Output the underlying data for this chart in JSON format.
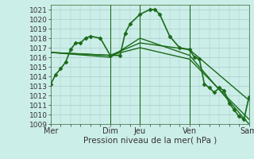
{
  "background_color": "#cceee8",
  "grid_color": "#aacccc",
  "line_color": "#1a6b1a",
  "xlabel": "Pression niveau de la mer( hPa )",
  "ylim": [
    1009,
    1021.5
  ],
  "yticks": [
    1009,
    1010,
    1011,
    1012,
    1013,
    1014,
    1015,
    1016,
    1017,
    1018,
    1019,
    1020,
    1021
  ],
  "xtick_labels": [
    "Mer",
    "Dim",
    "Jeu",
    "Ven",
    "Sam"
  ],
  "xtick_positions": [
    0,
    6,
    9,
    14,
    20
  ],
  "day_lines": [
    6,
    9,
    14,
    20
  ],
  "xlim": [
    0,
    20
  ],
  "series": [
    {
      "x": [
        0,
        0.5,
        1,
        1.5,
        2,
        2.5,
        3,
        3.5,
        4,
        5,
        6,
        7,
        7.5,
        8,
        9,
        10,
        10.5,
        11,
        12,
        13,
        14,
        14.5,
        15,
        15.5,
        16,
        16.5,
        17,
        17.5,
        18,
        18.5,
        19,
        19.5,
        20
      ],
      "y": [
        1013.2,
        1014.2,
        1014.8,
        1015.5,
        1016.8,
        1017.5,
        1017.5,
        1018.0,
        1018.2,
        1018.0,
        1016.2,
        1016.2,
        1018.5,
        1019.5,
        1020.5,
        1021.0,
        1021.0,
        1020.5,
        1018.2,
        1017.0,
        1016.8,
        1016.0,
        1015.8,
        1013.2,
        1012.8,
        1012.3,
        1012.8,
        1012.5,
        1011.2,
        1010.5,
        1009.8,
        1009.5,
        1011.8
      ],
      "marker": "D",
      "markersize": 2.5,
      "linewidth": 1.2,
      "has_markers": true
    },
    {
      "x": [
        0,
        6,
        9,
        14,
        20
      ],
      "y": [
        1016.5,
        1016.2,
        1017.5,
        1016.8,
        1011.5
      ],
      "marker": null,
      "markersize": 0,
      "linewidth": 1.0,
      "has_markers": false
    },
    {
      "x": [
        0,
        6,
        9,
        14,
        20
      ],
      "y": [
        1016.5,
        1016.0,
        1018.0,
        1016.2,
        1009.0
      ],
      "marker": null,
      "markersize": 0,
      "linewidth": 1.0,
      "has_markers": false
    },
    {
      "x": [
        0,
        6,
        9,
        14,
        20
      ],
      "y": [
        1016.5,
        1016.2,
        1017.0,
        1015.8,
        1009.5
      ],
      "marker": null,
      "markersize": 0,
      "linewidth": 1.0,
      "has_markers": false
    }
  ]
}
